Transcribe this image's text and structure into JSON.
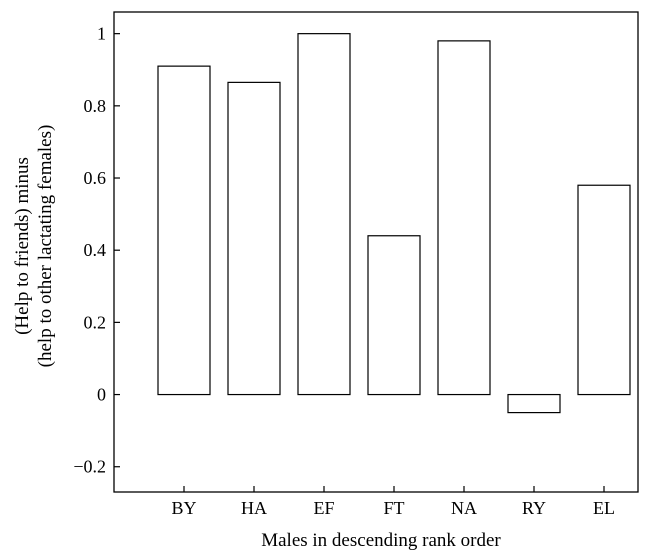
{
  "chart_data": {
    "type": "bar",
    "categories": [
      "BY",
      "HA",
      "EF",
      "FT",
      "NA",
      "RY",
      "EL"
    ],
    "values": [
      0.91,
      0.865,
      1.0,
      0.44,
      0.98,
      -0.05,
      0.58
    ],
    "title": "",
    "xlabel": "Males in descending rank order",
    "ylabel_lines": [
      "(Help to friends) minus",
      "(help to other lactating females)"
    ],
    "ylim": [
      -0.27,
      1.06
    ],
    "yticks": [
      -0.2,
      0,
      0.2,
      0.4,
      0.6,
      0.8,
      1
    ],
    "ytick_labels": [
      "−0.2",
      "0",
      "0.2",
      "0.4",
      "0.6",
      "0.8",
      "1"
    ],
    "grid": false,
    "bar_fill": "#ffffff",
    "bar_stroke": "#000000"
  }
}
